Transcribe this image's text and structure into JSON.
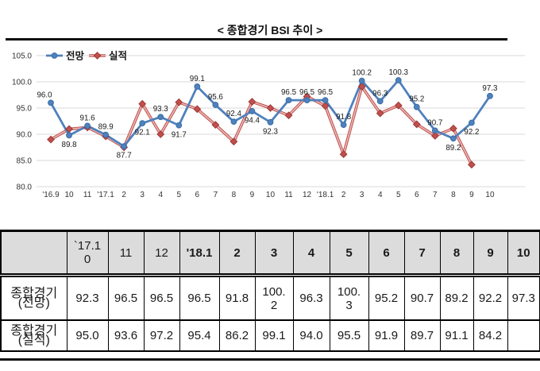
{
  "title": "< 종합경기 BSI 추이 >",
  "chart_data": {
    "type": "line",
    "title": "종합경기 BSI 추이",
    "xlabel": "",
    "ylabel": "",
    "ylim": [
      80,
      105
    ],
    "ytick_step": 5,
    "yticks": [
      "105.0",
      "100.0",
      "95.0",
      "90.0",
      "85.0",
      "80.0"
    ],
    "grid": true,
    "legend_position": "top-left",
    "categories": [
      "'16.9",
      "10",
      "11",
      "'17.1",
      "2",
      "3",
      "4",
      "5",
      "6",
      "7",
      "8",
      "9",
      "10",
      "11",
      "12",
      "'18.1",
      "2",
      "3",
      "4",
      "5",
      "6",
      "7",
      "8",
      "9",
      "10"
    ],
    "series": [
      {
        "name": "전망",
        "color": "#4f81bd",
        "marker": "circle",
        "values": [
          96.0,
          89.8,
          91.6,
          89.9,
          87.7,
          92.1,
          93.3,
          91.7,
          99.1,
          95.6,
          92.4,
          94.4,
          92.3,
          96.5,
          96.5,
          96.5,
          91.8,
          100.2,
          96.3,
          100.3,
          95.2,
          90.7,
          89.2,
          92.2,
          97.3
        ],
        "labels": [
          "96.0",
          "89.8",
          "91.6",
          "89.9",
          "87.7",
          "92.1",
          "93.3",
          "91.7",
          "99.1",
          "95.6",
          "92.4",
          "94.4",
          "92.3",
          "96.5",
          "96.5",
          "96.5",
          "91.8",
          "100.2",
          "96.3",
          "100.3",
          "95.2",
          "90.7",
          "89.2",
          "92.2",
          "97.3"
        ],
        "label_positions": [
          "above",
          "below",
          "above",
          "above",
          "below",
          "below",
          "above",
          "below",
          "above",
          "above",
          "above",
          "below",
          "below",
          "above",
          "above",
          "above",
          "above",
          "above",
          "above",
          "above",
          "above",
          "above",
          "below",
          "below",
          "above"
        ]
      },
      {
        "name": "실적",
        "color": "#c0504d",
        "marker": "diamond",
        "values": [
          89.0,
          91.0,
          91.3,
          89.6,
          87.5,
          95.8,
          90.0,
          96.1,
          94.8,
          91.8,
          88.6,
          96.2,
          95.0,
          93.6,
          97.2,
          95.4,
          86.2,
          99.1,
          94.0,
          95.5,
          91.9,
          89.7,
          91.1,
          84.2,
          null
        ],
        "labels": [],
        "label_positions": []
      }
    ]
  },
  "table": {
    "columns": [
      "",
      "`17.1\n0",
      "11",
      "12",
      "'18.1",
      "2",
      "3",
      "4",
      "5",
      "6",
      "7",
      "8",
      "9",
      "10"
    ],
    "bold_from_index": 4,
    "rows": [
      {
        "label": "종합경기\n(전망)",
        "values": [
          "92.3",
          "96.5",
          "96.5",
          "96.5",
          "91.8",
          "100.\n2",
          "96.3",
          "100.\n3",
          "95.2",
          "90.7",
          "89.2",
          "92.2",
          "97.3"
        ]
      },
      {
        "label": "종합경기\n(실적)",
        "values": [
          "95.0",
          "93.6",
          "97.2",
          "95.4",
          "86.2",
          "99.1",
          "94.0",
          "95.5",
          "91.9",
          "89.7",
          "91.1",
          "84.2",
          ""
        ]
      }
    ]
  }
}
